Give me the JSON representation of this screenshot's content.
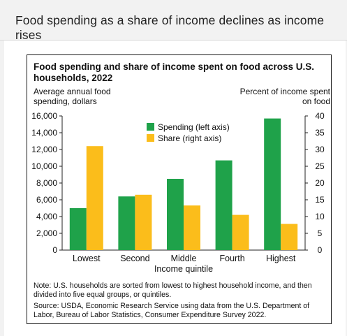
{
  "header": {
    "title": "Food spending as a share of income declines as income rises"
  },
  "chart_data": {
    "type": "bar",
    "title": "Food spending and share of income spent on food across U.S. households, 2022",
    "ylabel_left": "Average annual food spending, dollars",
    "ylabel_right": "Percent of income spent on food",
    "xlabel": "Income quintile",
    "categories": [
      "Lowest",
      "Second",
      "Middle",
      "Fourth",
      "Highest"
    ],
    "series": [
      {
        "name": "Spending (left axis)",
        "axis": "left",
        "color": "#1fa24a",
        "values": [
          5000,
          6400,
          8500,
          10700,
          15700
        ]
      },
      {
        "name": "Share (right axis)",
        "axis": "right",
        "color": "#fbbd1b",
        "values": [
          31,
          16.5,
          13.3,
          10.5,
          7.8
        ]
      }
    ],
    "ylim_left": [
      0,
      16000
    ],
    "ylim_right": [
      0,
      40
    ],
    "yticks_left": [
      "0",
      "2,000",
      "4,000",
      "6,000",
      "8,000",
      "10,000",
      "12,000",
      "14,000",
      "16,000"
    ],
    "yticks_right": [
      "0",
      "5",
      "10",
      "15",
      "20",
      "25",
      "30",
      "35",
      "40"
    ],
    "legend_position": "top-right",
    "grid": false
  },
  "note": "Note: U.S. households are sorted from lowest to highest household income, and then divided into five equal groups, or quintiles.",
  "source": "Source: USDA, Economic Research Service using data from the U.S. Department of Labor, Bureau of Labor Statistics, Consumer Expenditure Survey 2022."
}
